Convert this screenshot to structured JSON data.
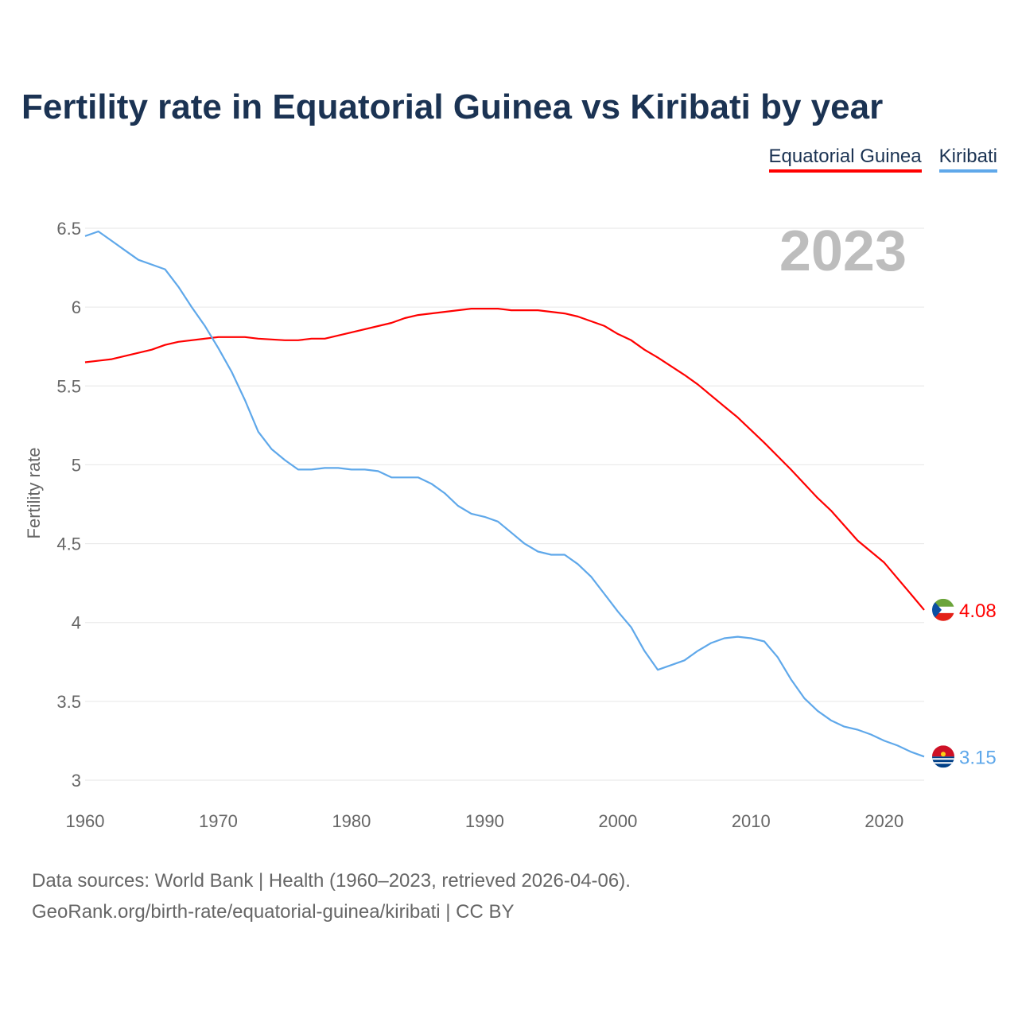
{
  "title": "Fertility rate in Equatorial Guinea vs Kiribati by year",
  "year_label": "2023",
  "source_line1": "Data sources: World Bank | Health (1960–2023, retrieved 2026-04-06).",
  "source_line2": "GeoRank.org/birth-rate/equatorial-guinea/kiribati | CC BY",
  "chart_data": {
    "type": "line",
    "title": "Fertility rate in Equatorial Guinea vs Kiribati by year",
    "xlabel": "",
    "ylabel": "Fertility rate",
    "xlim": [
      1960,
      2023
    ],
    "ylim": [
      3,
      6.5
    ],
    "xticks": [
      "1960",
      "1970",
      "1980",
      "1990",
      "2000",
      "2010",
      "2020"
    ],
    "yticks": [
      "3",
      "3.5",
      "4",
      "4.5",
      "5",
      "5.5",
      "6",
      "6.5"
    ],
    "legend_position": "top-right",
    "grid": "horizontal",
    "series": [
      {
        "name": "Equatorial Guinea",
        "color": "#ff0000",
        "end_label": "4.08",
        "flag_icon": "equatorial-guinea-flag-icon",
        "x": [
          1960,
          1962,
          1965,
          1966,
          1967,
          1970,
          1972,
          1973,
          1975,
          1976,
          1977,
          1978,
          1980,
          1983,
          1984,
          1985,
          1989,
          1991,
          1992,
          1994,
          1996,
          1997,
          1999,
          2000,
          2001,
          2002,
          2003,
          2005,
          2006,
          2008,
          2009,
          2011,
          2013,
          2015,
          2016,
          2018,
          2020,
          2021,
          2022,
          2023
        ],
        "y": [
          5.65,
          5.67,
          5.73,
          5.76,
          5.78,
          5.81,
          5.81,
          5.8,
          5.79,
          5.79,
          5.8,
          5.8,
          5.84,
          5.9,
          5.93,
          5.95,
          5.99,
          5.99,
          5.98,
          5.98,
          5.96,
          5.94,
          5.88,
          5.83,
          5.79,
          5.73,
          5.68,
          5.57,
          5.51,
          5.37,
          5.3,
          5.14,
          4.97,
          4.79,
          4.71,
          4.52,
          4.38,
          4.28,
          4.18,
          4.08
        ]
      },
      {
        "name": "Kiribati",
        "color": "#5fa8ea",
        "end_label": "3.15",
        "flag_icon": "kiribati-flag-icon",
        "x": [
          1960,
          1961,
          1962,
          1963,
          1964,
          1966,
          1967,
          1968,
          1969,
          1970,
          1971,
          1972,
          1973,
          1974,
          1975,
          1976,
          1977,
          1978,
          1979,
          1980,
          1981,
          1982,
          1983,
          1984,
          1985,
          1986,
          1987,
          1988,
          1989,
          1990,
          1991,
          1992,
          1993,
          1994,
          1995,
          1996,
          1997,
          1998,
          1999,
          2000,
          2001,
          2002,
          2003,
          2004,
          2005,
          2006,
          2007,
          2008,
          2009,
          2010,
          2011,
          2012,
          2013,
          2014,
          2015,
          2016,
          2017,
          2018,
          2019,
          2020,
          2021,
          2022,
          2023
        ],
        "y": [
          6.45,
          6.48,
          6.42,
          6.36,
          6.3,
          6.24,
          6.13,
          6.0,
          5.88,
          5.74,
          5.59,
          5.41,
          5.21,
          5.1,
          5.03,
          4.97,
          4.97,
          4.98,
          4.98,
          4.97,
          4.97,
          4.96,
          4.92,
          4.92,
          4.92,
          4.88,
          4.82,
          4.74,
          4.69,
          4.67,
          4.64,
          4.57,
          4.5,
          4.45,
          4.43,
          4.43,
          4.37,
          4.29,
          4.18,
          4.07,
          3.97,
          3.82,
          3.7,
          3.73,
          3.76,
          3.82,
          3.87,
          3.9,
          3.91,
          3.9,
          3.88,
          3.78,
          3.64,
          3.52,
          3.44,
          3.38,
          3.34,
          3.32,
          3.29,
          3.25,
          3.22,
          3.18,
          3.15
        ]
      }
    ]
  }
}
